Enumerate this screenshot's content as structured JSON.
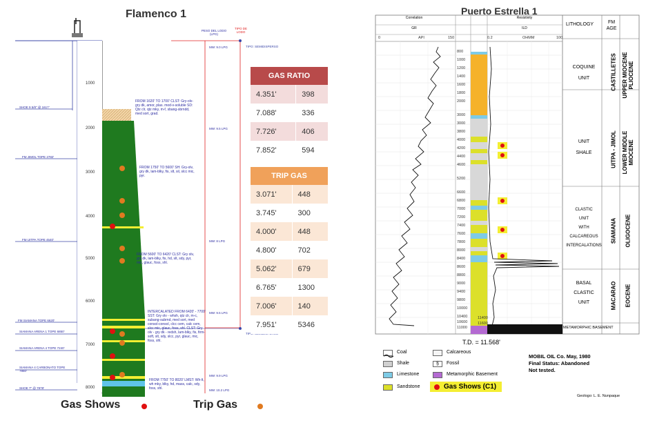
{
  "left": {
    "title": "Flamenco 1",
    "depths": [
      "1000",
      "2000",
      "3000",
      "4000",
      "5000",
      "6000",
      "7000",
      "8000"
    ],
    "mud_header": "PESO DEL LODO (LPG)",
    "fluid_header": "TIPO DE LODO",
    "fluid_top": "TIPO: SEMIDISPERSO",
    "fluid_bottom": "TIPO: SEMIDISPERSO",
    "mud_weights": [
      "MW: 9.0 LPG",
      "MW: 9.5 LPG",
      "MW: 8 LPG",
      "MW: 9.5 LPG",
      "MW: 9.9 LPG",
      "MW: 10.2 LPG"
    ],
    "left_labels": [
      "SHOE 9 5/8\" @ 1617'",
      "FM JIMOL TOPE 2782'",
      "FM UITPA TOPE 4540'",
      "FM SIAMANA TOPE 6620'",
      "SIAMANA ARENA 1 TOPE 6850'",
      "SIAMANA ARENA 4 TOPE 7240'",
      "SIAMANA 4 CARBONATO TOPE 7860'",
      "SHOE 7\" @ 7878'"
    ],
    "lith_notes": [
      "FROM 1620' TO 1700' CLST: Gry-olv-gry dk, amor, plas. mod-v-soluble SD: Qtz clr, qtz mky, m-f, sbang-sbrndd, med sort, grad.",
      "FROM 1750' TO 5600' SH: Gry-olv, gry dk, lam-blky, fis, slt, sil, slcc mic, pyr.",
      "FROM 5600' TO 6420' CLST: Gry olv, gry dk, lam-blky, fis, hd, slt, sdy, pyr, mic, glauc, foss, shl.",
      "INTERCALATED FROM 6420' - 7700' SST: Gry olv - whsh, qtz clr, m-c, subang-subrnd, med sort, med consol-consol, clcc cem, calc cem, slcc mic, glauc, foss, shl. CLST: Gry olv - gry dk - redsh, lam-blky, fis, firm-soft, slt, sdy, slcc, pyr, glauc, mic, foss, shl.",
      "FROM 7750' TO 8020' LMST: Wh-lt, wh mky, blky, hd, mass, calc, sdy, foss, shl."
    ],
    "gas_ratio": {
      "header": "GAS RATIO",
      "rows": [
        [
          "4.351'",
          "398"
        ],
        [
          "7.088'",
          "336"
        ],
        [
          "7.726'",
          "406"
        ],
        [
          "7.852'",
          "594"
        ]
      ]
    },
    "trip_gas": {
      "header": "TRIP GAS",
      "rows": [
        [
          "3.071'",
          "448"
        ],
        [
          "3.745'",
          "300"
        ],
        [
          "4.000'",
          "448"
        ],
        [
          "4.800'",
          "702"
        ],
        [
          "5.062'",
          "679"
        ],
        [
          "6.765'",
          "1300"
        ],
        [
          "7.006'",
          "140"
        ],
        [
          "7.951'",
          "5346"
        ]
      ]
    },
    "legend_gas_shows": "Gas Shows",
    "legend_trip_gas": "Trip Gas",
    "colors": {
      "gas_ratio_header": "#b84a4a",
      "trip_gas_header": "#f0a15a",
      "formation_green": "#1f7a1f",
      "gas_show": "#e01010",
      "trip_gas_dot": "#e07a20"
    }
  },
  "right": {
    "title": "Puerto Estrella 1",
    "track1_header": "Correlation",
    "track1_sub": "GR",
    "track1_scale": [
      "0",
      "API",
      "150"
    ],
    "track2_header": "Resistivity",
    "track2_sub": "ILD",
    "track2_scale": [
      "0.2",
      "OHMM",
      "100"
    ],
    "depths": [
      "800",
      "1000",
      "1200",
      "1400",
      "1600",
      "1800",
      "2000",
      "3000",
      "3000",
      "3800",
      "4000",
      "4200",
      "4400",
      "4600",
      "5200",
      "6600",
      "6800",
      "7000",
      "7200",
      "7400",
      "7600",
      "7800",
      "8000",
      "8400",
      "8600",
      "8800",
      "9000",
      "9400",
      "9800",
      "10000",
      "10400",
      "10600",
      "11000",
      "11400",
      "11600"
    ],
    "headers": {
      "lithology": "LITHOLOGY",
      "fm_age": "FM AGE"
    },
    "units": [
      {
        "lith": [
          "COQUINE",
          "UNIT"
        ],
        "fm": "CASTILLETES",
        "age": "UPPER MIOCENE PLIOCENE"
      },
      {
        "lith": [
          "UNIT",
          "SHALE"
        ],
        "fm": "UITPA - JIMOL",
        "age": "LOWER MIDDLE MIOCENE"
      },
      {
        "lith": [
          "CLASTIC",
          "UNIT",
          "WITH",
          "CALCAREOUS",
          "INTERCALATIONS"
        ],
        "fm": "SIAMANA",
        "age": "OLIGOCENE"
      },
      {
        "lith": [
          "BASAL",
          "CLASTIC",
          "UNIT"
        ],
        "fm": "MACARAO",
        "age": "EOCENE"
      }
    ],
    "basement": "METAMORPHIC BASEMENT",
    "td": "T.D. = 11.568'",
    "legend": [
      {
        "label": "Coal",
        "color": "#333333"
      },
      {
        "label": "Calcareous",
        "color": "#f5f5f5"
      },
      {
        "label": "Shale",
        "color": "#d0d0d0"
      },
      {
        "label": "Fossil",
        "color": "#ffffff"
      },
      {
        "label": "Limestone",
        "color": "#7ecbe6"
      },
      {
        "label": "Metamorphic Basement",
        "color": "#b46ad2"
      },
      {
        "label": "Sandstone",
        "color": "#dce02a"
      }
    ],
    "gas_shows_label": "Gas Shows (C1)",
    "notes": [
      "MOBIL OIL Co. May, 1980",
      "Final Status: Abandoned",
      "Not tested."
    ],
    "credit": "Geologo: L. E. Nunpaque"
  }
}
